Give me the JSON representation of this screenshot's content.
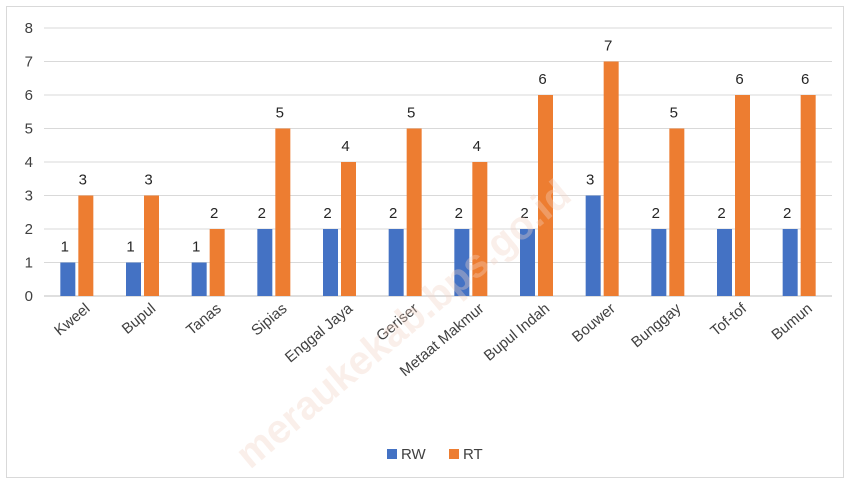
{
  "watermark": "meraukekab.bps.go.id",
  "chart_data": {
    "type": "bar",
    "title": "",
    "xlabel": "",
    "ylabel": "",
    "ylim": [
      0,
      8
    ],
    "yticks": [
      0,
      1,
      2,
      3,
      4,
      5,
      6,
      7,
      8
    ],
    "grid": true,
    "legend_position": "bottom",
    "categories": [
      "Kweel",
      "Bupul",
      "Tanas",
      "Sipias",
      "Enggal Jaya",
      "Geriser",
      "Metaat Makmur",
      "Bupul Indah",
      "Bouwer",
      "Bunggay",
      "Tof-tof",
      "Bumun"
    ],
    "series": [
      {
        "name": "RW",
        "color": "#4472c4",
        "values": [
          1,
          1,
          1,
          2,
          2,
          2,
          2,
          2,
          3,
          2,
          2,
          2
        ]
      },
      {
        "name": "RT",
        "color": "#ed7d31",
        "values": [
          3,
          3,
          2,
          5,
          4,
          5,
          4,
          6,
          7,
          5,
          6,
          6
        ]
      }
    ]
  }
}
